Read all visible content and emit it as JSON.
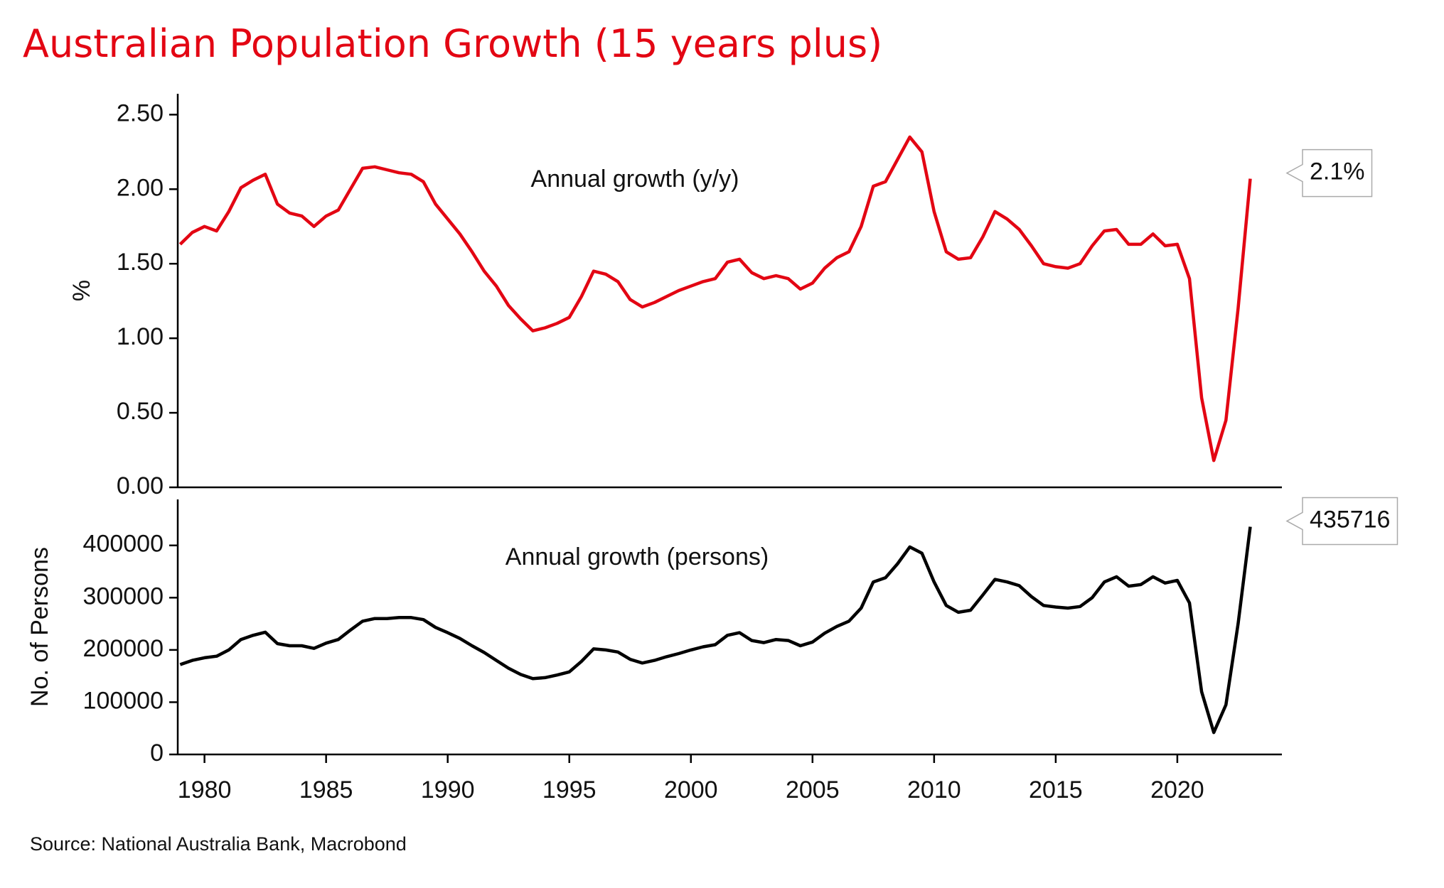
{
  "title": "Australian Population Growth (15 years plus)",
  "source": "Source: National Australia Bank, Macrobond",
  "chart_data": [
    {
      "type": "line",
      "ylabel": "%",
      "x": [
        1979,
        1979.5,
        1980,
        1980.5,
        1981,
        1981.5,
        1982,
        1982.5,
        1983,
        1983.5,
        1984,
        1984.5,
        1985,
        1985.5,
        1986,
        1986.5,
        1987,
        1987.5,
        1988,
        1988.5,
        1989,
        1989.5,
        1990,
        1990.5,
        1991,
        1991.5,
        1992,
        1992.5,
        1993,
        1993.5,
        1994,
        1994.5,
        1995,
        1995.5,
        1996,
        1996.5,
        1997,
        1997.5,
        1998,
        1998.5,
        1999,
        1999.5,
        2000,
        2000.5,
        2001,
        2001.5,
        2002,
        2002.5,
        2003,
        2003.5,
        2004,
        2004.5,
        2005,
        2005.5,
        2006,
        2006.5,
        2007,
        2007.5,
        2008,
        2008.5,
        2009,
        2009.5,
        2010,
        2010.5,
        2011,
        2011.5,
        2012,
        2012.5,
        2013,
        2013.5,
        2014,
        2014.5,
        2015,
        2015.5,
        2016,
        2016.5,
        2017,
        2017.5,
        2018,
        2018.5,
        2019,
        2019.5,
        2020,
        2020.5,
        2021,
        2021.5,
        2022,
        2022.5,
        2023
      ],
      "series": [
        {
          "name": "Annual growth (y/y)",
          "color": "#e30613",
          "end_label": true,
          "values": [
            1.63,
            1.71,
            1.75,
            1.72,
            1.85,
            2.01,
            2.06,
            2.1,
            1.9,
            1.84,
            1.82,
            1.75,
            1.82,
            1.86,
            2.0,
            2.14,
            2.15,
            2.13,
            2.11,
            2.1,
            2.05,
            1.9,
            1.8,
            1.7,
            1.58,
            1.45,
            1.35,
            1.22,
            1.13,
            1.05,
            1.07,
            1.1,
            1.14,
            1.28,
            1.45,
            1.43,
            1.38,
            1.26,
            1.21,
            1.24,
            1.28,
            1.32,
            1.35,
            1.38,
            1.4,
            1.51,
            1.53,
            1.44,
            1.4,
            1.42,
            1.4,
            1.33,
            1.37,
            1.47,
            1.54,
            1.58,
            1.75,
            2.02,
            2.05,
            2.2,
            2.35,
            2.25,
            1.85,
            1.58,
            1.53,
            1.54,
            1.68,
            1.85,
            1.8,
            1.73,
            1.62,
            1.5,
            1.48,
            1.47,
            1.5,
            1.62,
            1.72,
            1.73,
            1.63,
            1.63,
            1.7,
            1.62,
            1.63,
            1.4,
            0.6,
            0.18,
            0.45,
            1.2,
            2.07
          ],
          "value_labels": [
            null,
            null,
            null,
            null,
            null,
            null,
            null,
            null,
            null,
            null,
            null,
            null,
            null,
            null,
            null,
            null,
            null,
            null,
            null,
            null,
            null,
            null,
            null,
            null,
            null,
            null,
            null,
            null,
            null,
            null,
            null,
            null,
            null,
            null,
            null,
            null,
            null,
            null,
            null,
            null,
            null,
            null,
            null,
            null,
            null,
            null,
            null,
            null,
            null,
            null,
            null,
            null,
            null,
            null,
            null,
            null,
            null,
            null,
            null,
            null,
            null,
            null,
            null,
            null,
            null,
            null,
            null,
            null,
            null,
            null,
            null,
            null,
            null,
            null,
            null,
            null,
            null,
            null,
            null,
            null,
            null,
            null,
            null,
            null,
            null,
            null,
            null,
            null,
            "2.1%"
          ]
        }
      ],
      "xlim": [
        1978.9,
        2024.3
      ],
      "ylim": [
        0,
        2.64
      ],
      "yticks": [
        {
          "value": 0,
          "label": "0.00"
        },
        {
          "value": 0.5,
          "label": "0.50"
        },
        {
          "value": 1,
          "label": "1.00"
        },
        {
          "value": 1.5,
          "label": "1.50"
        },
        {
          "value": 2,
          "label": "2.00"
        },
        {
          "value": 2.5,
          "label": "2.50"
        }
      ]
    },
    {
      "type": "line",
      "ylabel": "No. of Persons",
      "x": [
        1979,
        1979.5,
        1980,
        1980.5,
        1981,
        1981.5,
        1982,
        1982.5,
        1983,
        1983.5,
        1984,
        1984.5,
        1985,
        1985.5,
        1986,
        1986.5,
        1987,
        1987.5,
        1988,
        1988.5,
        1989,
        1989.5,
        1990,
        1990.5,
        1991,
        1991.5,
        1992,
        1992.5,
        1993,
        1993.5,
        1994,
        1994.5,
        1995,
        1995.5,
        1996,
        1996.5,
        1997,
        1997.5,
        1998,
        1998.5,
        1999,
        1999.5,
        2000,
        2000.5,
        2001,
        2001.5,
        2002,
        2002.5,
        2003,
        2003.5,
        2004,
        2004.5,
        2005,
        2005.5,
        2006,
        2006.5,
        2007,
        2007.5,
        2008,
        2008.5,
        2009,
        2009.5,
        2010,
        2010.5,
        2011,
        2011.5,
        2012,
        2012.5,
        2013,
        2013.5,
        2014,
        2014.5,
        2015,
        2015.5,
        2016,
        2016.5,
        2017,
        2017.5,
        2018,
        2018.5,
        2019,
        2019.5,
        2020,
        2020.5,
        2021,
        2021.5,
        2022,
        2022.5,
        2023
      ],
      "series": [
        {
          "name": "Annual growth (persons)",
          "color": "#000000",
          "end_label": true,
          "values": [
            172000,
            180000,
            185000,
            188000,
            200000,
            220000,
            228000,
            234000,
            212000,
            208000,
            208000,
            203000,
            213000,
            220000,
            238000,
            255000,
            260000,
            260000,
            262000,
            262000,
            258000,
            243000,
            233000,
            222000,
            208000,
            195000,
            180000,
            165000,
            153000,
            145000,
            147000,
            152000,
            158000,
            178000,
            202000,
            200000,
            196000,
            182000,
            175000,
            180000,
            187000,
            193000,
            200000,
            206000,
            210000,
            228000,
            233000,
            218000,
            214000,
            220000,
            218000,
            208000,
            215000,
            232000,
            245000,
            255000,
            280000,
            330000,
            338000,
            365000,
            397000,
            385000,
            330000,
            285000,
            272000,
            276000,
            305000,
            335000,
            330000,
            323000,
            302000,
            285000,
            282000,
            280000,
            283000,
            300000,
            330000,
            340000,
            322000,
            325000,
            340000,
            328000,
            333000,
            290000,
            120000,
            42000,
            95000,
            250000,
            435716
          ]
        }
      ],
      "xlim": [
        1978.9,
        2024.3
      ],
      "xticks": [
        1980,
        1985,
        1990,
        1995,
        2000,
        2005,
        2010,
        2015,
        2020
      ],
      "ylim": [
        0,
        488000
      ],
      "yticks": [
        0,
        100000,
        200000,
        300000,
        400000
      ]
    }
  ]
}
